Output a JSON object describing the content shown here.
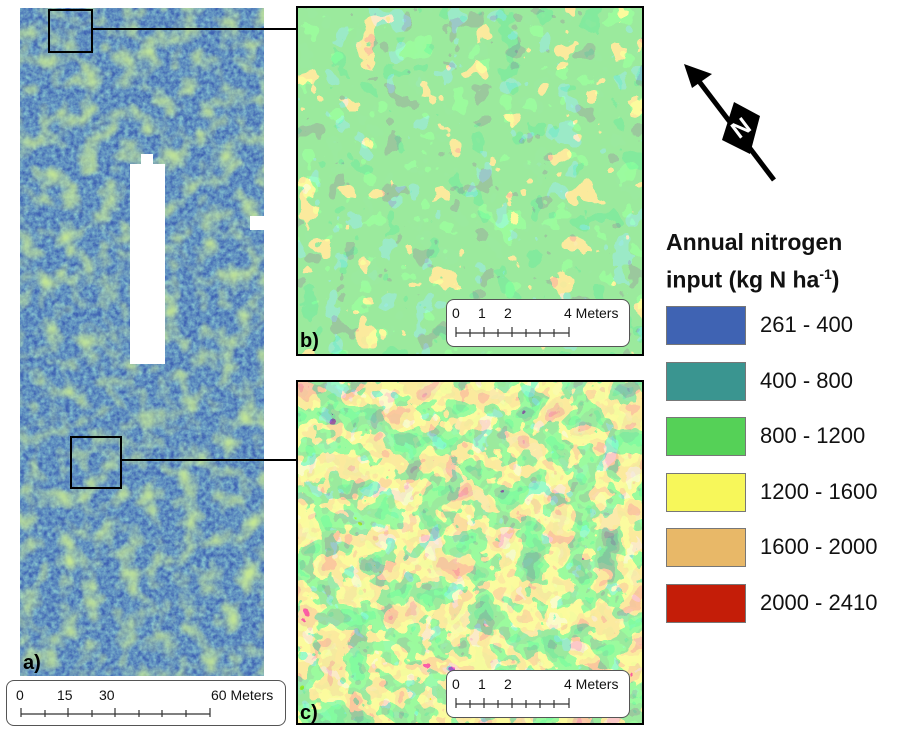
{
  "panels": {
    "a": {
      "label": "a)"
    },
    "b": {
      "label": "b)"
    },
    "c": {
      "label": "c)"
    }
  },
  "scalebar_main": {
    "ticks": [
      "0",
      "15",
      "30",
      "60 Meters"
    ]
  },
  "scalebar_b": {
    "ticks": [
      "0",
      "1",
      "2",
      "4 Meters"
    ]
  },
  "scalebar_c": {
    "ticks": [
      "0",
      "1",
      "2",
      "4 Meters"
    ]
  },
  "north_arrow": {
    "letter": "N",
    "icon": "north-arrow-icon"
  },
  "legend": {
    "title_line1": "Annual nitrogen",
    "title_line2_prefix": "input (kg N ha",
    "title_line2_sup": "-1",
    "title_line2_suffix": ")",
    "classes": [
      {
        "label": "261 - 400",
        "color": "#3f63b3"
      },
      {
        "label": "400 - 800",
        "color": "#3a9590"
      },
      {
        "label": "800 - 1200",
        "color": "#55d157"
      },
      {
        "label": "1200 - 1600",
        "color": "#f7f75a"
      },
      {
        "label": "1600 - 2000",
        "color": "#e8b868"
      },
      {
        "label": "2000 - 2410",
        "color": "#c41d08"
      }
    ]
  }
}
